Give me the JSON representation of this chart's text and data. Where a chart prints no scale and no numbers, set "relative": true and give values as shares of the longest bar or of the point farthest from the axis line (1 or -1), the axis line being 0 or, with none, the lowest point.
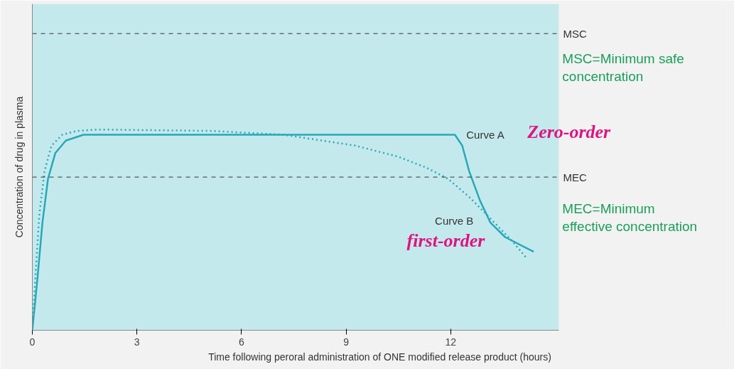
{
  "chart_data": {
    "type": "line",
    "relative": true,
    "xlabel": "Time following peroral administration of ONE modified release product (hours)",
    "ylabel": "Concentration of drug in plasma",
    "xlim": [
      0,
      15.1
    ],
    "xticks": [
      0,
      3,
      6,
      9,
      12
    ],
    "grid": false,
    "marker": "none",
    "series": [
      {
        "color": "#26a9b8",
        "line_style": "solid",
        "x": [
          0,
          0.14,
          0.29,
          0.45,
          0.66,
          0.96,
          1.47,
          12.12,
          12.33,
          12.53,
          12.84,
          13.14,
          13.56,
          14.38
        ],
        "values": [
          0,
          0.245,
          0.536,
          0.755,
          0.883,
          0.945,
          0.974,
          0.974,
          0.92,
          0.792,
          0.646,
          0.536,
          0.464,
          0.391
        ]
      },
      {
        "color": "#26a9b8",
        "line_style": "dotted",
        "x": [
          0,
          0.08,
          0.2,
          0.35,
          0.55,
          0.86,
          1.27,
          1.88,
          5.16,
          7.21,
          9.26,
          10.49,
          11.3,
          11.92,
          12.53,
          13.15,
          13.76,
          14.17
        ],
        "values": [
          0,
          0.245,
          0.573,
          0.792,
          0.92,
          0.974,
          0.993,
          1,
          0.993,
          0.974,
          0.92,
          0.865,
          0.81,
          0.755,
          0.664,
          0.555,
          0.445,
          0.361
        ]
      }
    ],
    "ref_lines": [
      {
        "axis": "y",
        "value": 1.478,
        "label": "MSC",
        "color": "#333333",
        "line_style": "dashed"
      },
      {
        "axis": "y",
        "value": 0.763,
        "label": "MEC",
        "color": "#333333",
        "line_style": "dashed"
      }
    ],
    "annotations": [
      "Curve A",
      "Zero-order",
      "Curve B",
      "first-order",
      "MSC=Minimum safe concentration",
      "MEC=Minimum effective concentration"
    ]
  }
}
